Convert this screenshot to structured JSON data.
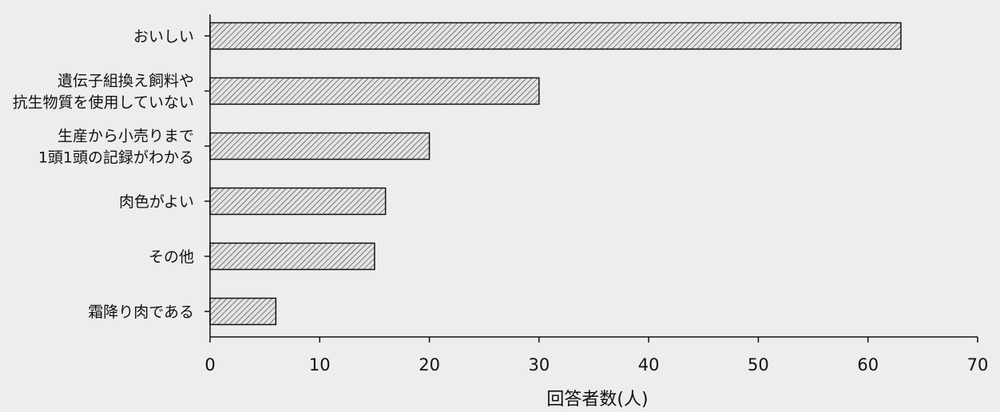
{
  "chart_data": {
    "type": "bar",
    "orientation": "horizontal",
    "categories": [
      [
        "おいしい"
      ],
      [
        "遺伝子組換え飼料や",
        "抗生物質を使用していない"
      ],
      [
        "生産から小売りまで",
        "1頭1頭の記録がわかる"
      ],
      [
        "肉色がよい"
      ],
      [
        "その他"
      ],
      [
        "霜降り肉である"
      ]
    ],
    "values": [
      63,
      30,
      20,
      16,
      15,
      6
    ],
    "xlabel": "回答者数(人)",
    "ylabel": "",
    "xlim": [
      0,
      70
    ],
    "xticks": [
      "0",
      "10",
      "20",
      "30",
      "40",
      "50",
      "60",
      "70"
    ],
    "grid": false,
    "bar_fill": "hatched",
    "colors": {
      "bar_stroke": "#111111",
      "hatch": "#333333",
      "bar_bg": "#e4e4e4"
    }
  }
}
